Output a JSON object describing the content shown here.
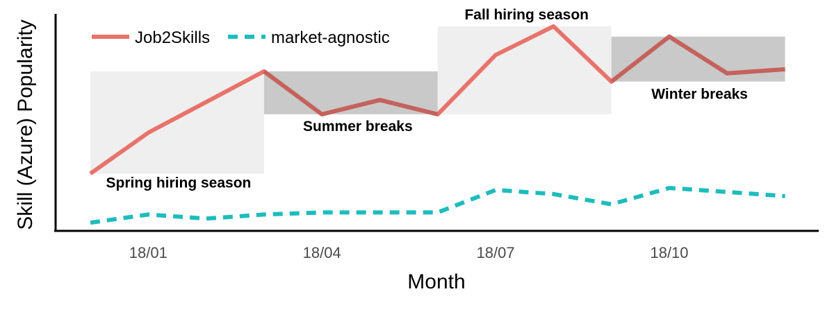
{
  "chart_data": {
    "type": "line",
    "title": "",
    "xlabel": "Month",
    "ylabel": "Skill (Azure) Popularity",
    "x_ticks": [
      "18/01",
      "18/04",
      "18/07",
      "18/10"
    ],
    "x": [
      "17/12",
      "18/01",
      "18/02",
      "18/03",
      "18/04",
      "18/05",
      "18/06",
      "18/07",
      "18/08",
      "18/09",
      "18/10",
      "18/11",
      "18/12"
    ],
    "y_ticks_shown": false,
    "ylim": [
      0,
      100
    ],
    "legend_position": "top-left",
    "series": [
      {
        "name": "Job2Skills",
        "color": "#e8736b",
        "style": "solid",
        "values": [
          28,
          48,
          63,
          78,
          57,
          64,
          57,
          86,
          100,
          73,
          95,
          77,
          79
        ]
      },
      {
        "name": "market-agnostic",
        "color": "#1fbcbc",
        "style": "dashed",
        "values": [
          4,
          8,
          6,
          8,
          9,
          9,
          9,
          20,
          18,
          13,
          21,
          19,
          17
        ]
      }
    ],
    "bands": [
      {
        "label": "Spring hiring season",
        "from": "17/12",
        "to": "18/03",
        "y_range": [
          28,
          78
        ],
        "color": "#efefef"
      },
      {
        "label": "Summer breaks",
        "from": "18/03",
        "to": "18/06",
        "y_range": [
          57,
          78
        ],
        "color": "#c9c9c9"
      },
      {
        "label": "Fall hiring season",
        "from": "18/06",
        "to": "18/09",
        "y_range": [
          57,
          100
        ],
        "color": "#efefef"
      },
      {
        "label": "Winter breaks",
        "from": "18/09",
        "to": "18/12",
        "y_range": [
          73,
          95
        ],
        "color": "#c9c9c9"
      }
    ]
  }
}
